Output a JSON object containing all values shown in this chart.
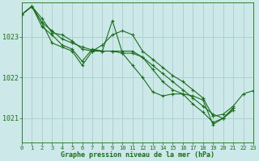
{
  "background_color": "#cce8e8",
  "grid_color": "#aacccc",
  "line_color": "#1a6e1a",
  "xlabel": "Graphe pression niveau de la mer (hPa)",
  "ylim": [
    1020.4,
    1023.85
  ],
  "xlim": [
    0,
    23
  ],
  "yticks": [
    1021,
    1022,
    1023
  ],
  "xticks": [
    0,
    1,
    2,
    3,
    4,
    5,
    6,
    7,
    8,
    9,
    10,
    11,
    12,
    13,
    14,
    15,
    16,
    17,
    18,
    19,
    20,
    21,
    22,
    23
  ],
  "series": [
    {
      "x": [
        0,
        1,
        2,
        3,
        4,
        5,
        6,
        7,
        8,
        9,
        10,
        11,
        12,
        13,
        14,
        15,
        16,
        17,
        18,
        19,
        20,
        21,
        22,
        23
      ],
      "y": [
        1023.55,
        1023.75,
        1023.45,
        1023.1,
        1023.05,
        1022.9,
        1022.7,
        1022.65,
        1022.8,
        1023.05,
        1023.15,
        1023.05,
        1022.65,
        1022.45,
        1022.25,
        1022.05,
        1021.9,
        1021.7,
        1021.5,
        1021.05,
        1021.1,
        1021.3,
        1021.6,
        1021.68
      ]
    },
    {
      "x": [
        0,
        1,
        2,
        3,
        4,
        5,
        6,
        7,
        8,
        9,
        10,
        11,
        12,
        13,
        14,
        15,
        16,
        17,
        18,
        19,
        20,
        21
      ],
      "y": [
        1023.55,
        1023.75,
        1023.35,
        1022.85,
        1022.75,
        1022.65,
        1022.3,
        1022.65,
        1022.65,
        1023.4,
        1022.6,
        1022.3,
        1022.0,
        1021.65,
        1021.55,
        1021.6,
        1021.6,
        1021.55,
        1021.45,
        1020.85,
        1021.0,
        1021.25
      ]
    },
    {
      "x": [
        0,
        1,
        2,
        3,
        4,
        5,
        6,
        7,
        8,
        9,
        10,
        11,
        12,
        13,
        14,
        15,
        16,
        17,
        18,
        19,
        20,
        21
      ],
      "y": [
        1023.55,
        1023.75,
        1023.25,
        1023.05,
        1022.8,
        1022.7,
        1022.4,
        1022.7,
        1022.65,
        1022.65,
        1022.65,
        1022.65,
        1022.5,
        1022.2,
        1021.9,
        1021.7,
        1021.6,
        1021.35,
        1021.15,
        1020.9,
        1021.0,
        1021.25
      ]
    },
    {
      "x": [
        0,
        1,
        2,
        3,
        4,
        5,
        6,
        7,
        8,
        9,
        10,
        11,
        12,
        13,
        14,
        15,
        16,
        17,
        18,
        19,
        20,
        21
      ],
      "y": [
        1023.55,
        1023.75,
        1023.35,
        1023.15,
        1022.95,
        1022.85,
        1022.75,
        1022.68,
        1022.65,
        1022.65,
        1022.6,
        1022.6,
        1022.5,
        1022.3,
        1022.1,
        1021.9,
        1021.7,
        1021.5,
        1021.3,
        1021.1,
        1021.0,
        1021.2
      ]
    }
  ]
}
